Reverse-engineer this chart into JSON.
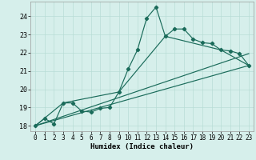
{
  "xlabel": "Humidex (Indice chaleur)",
  "xlim": [
    -0.5,
    23.5
  ],
  "ylim": [
    17.7,
    24.8
  ],
  "yticks": [
    18,
    19,
    20,
    21,
    22,
    23,
    24
  ],
  "xticks": [
    0,
    1,
    2,
    3,
    4,
    5,
    6,
    7,
    8,
    9,
    10,
    11,
    12,
    13,
    14,
    15,
    16,
    17,
    18,
    19,
    20,
    21,
    22,
    23
  ],
  "bg_color": "#d6efeb",
  "grid_color": "#b8ddd6",
  "line_color": "#1a6b5a",
  "line1_x": [
    0,
    1,
    2,
    3,
    4,
    5,
    6,
    7,
    8,
    9,
    10,
    11,
    12,
    13,
    14,
    15,
    16,
    17,
    18,
    19,
    20,
    21,
    22,
    23
  ],
  "line1_y": [
    18.0,
    18.4,
    18.1,
    19.25,
    19.25,
    18.8,
    18.75,
    18.95,
    19.0,
    19.85,
    21.1,
    22.15,
    23.9,
    24.5,
    22.9,
    23.3,
    23.3,
    22.75,
    22.55,
    22.5,
    22.15,
    22.1,
    21.95,
    21.3
  ],
  "line2_x": [
    0,
    3,
    9,
    14,
    20,
    23
  ],
  "line2_y": [
    18.0,
    19.25,
    19.85,
    22.9,
    22.15,
    21.3
  ],
  "line3_x": [
    0,
    23
  ],
  "line3_y": [
    18.0,
    21.3
  ],
  "line4_x": [
    0,
    23
  ],
  "line4_y": [
    18.0,
    21.95
  ]
}
